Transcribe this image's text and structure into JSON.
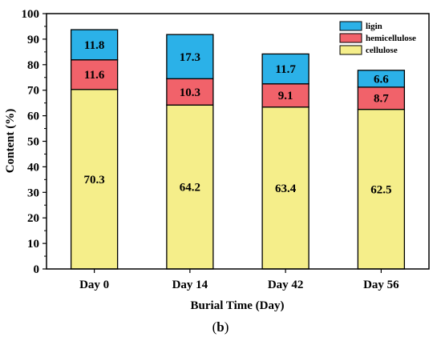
{
  "chart_data": {
    "type": "bar",
    "stacked": true,
    "categories": [
      "Day 0",
      "Day 14",
      "Day 42",
      "Day 56"
    ],
    "series": [
      {
        "name": "cellulose",
        "values": [
          70.3,
          64.2,
          63.4,
          62.5
        ],
        "labels": [
          "70.3",
          "64.2",
          "63.4",
          "62.5"
        ],
        "color": "#f5ee8a"
      },
      {
        "name": "hemicellulose",
        "values": [
          11.6,
          10.3,
          9.1,
          8.7
        ],
        "labels": [
          "11.6",
          "10.3",
          "9.1",
          "8.7"
        ],
        "color": "#f1626a"
      },
      {
        "name": "ligin",
        "values": [
          11.8,
          17.3,
          11.7,
          6.6
        ],
        "labels": [
          "11.8",
          "17.3",
          "11.7",
          "6.6"
        ],
        "color": "#2bb1e8"
      }
    ],
    "xlabel": "Burial Time (Day)",
    "ylabel": "Content (%)",
    "ylim": [
      0,
      100
    ],
    "yticks": [
      "0",
      "10",
      "20",
      "30",
      "40",
      "50",
      "60",
      "70",
      "80",
      "90",
      "100"
    ],
    "legend_order": [
      "ligin",
      "hemicellulose",
      "cellulose"
    ],
    "legend_position": "top-right",
    "grid": false
  },
  "caption": {
    "open": "(",
    "letter": "b",
    "close": ")"
  }
}
